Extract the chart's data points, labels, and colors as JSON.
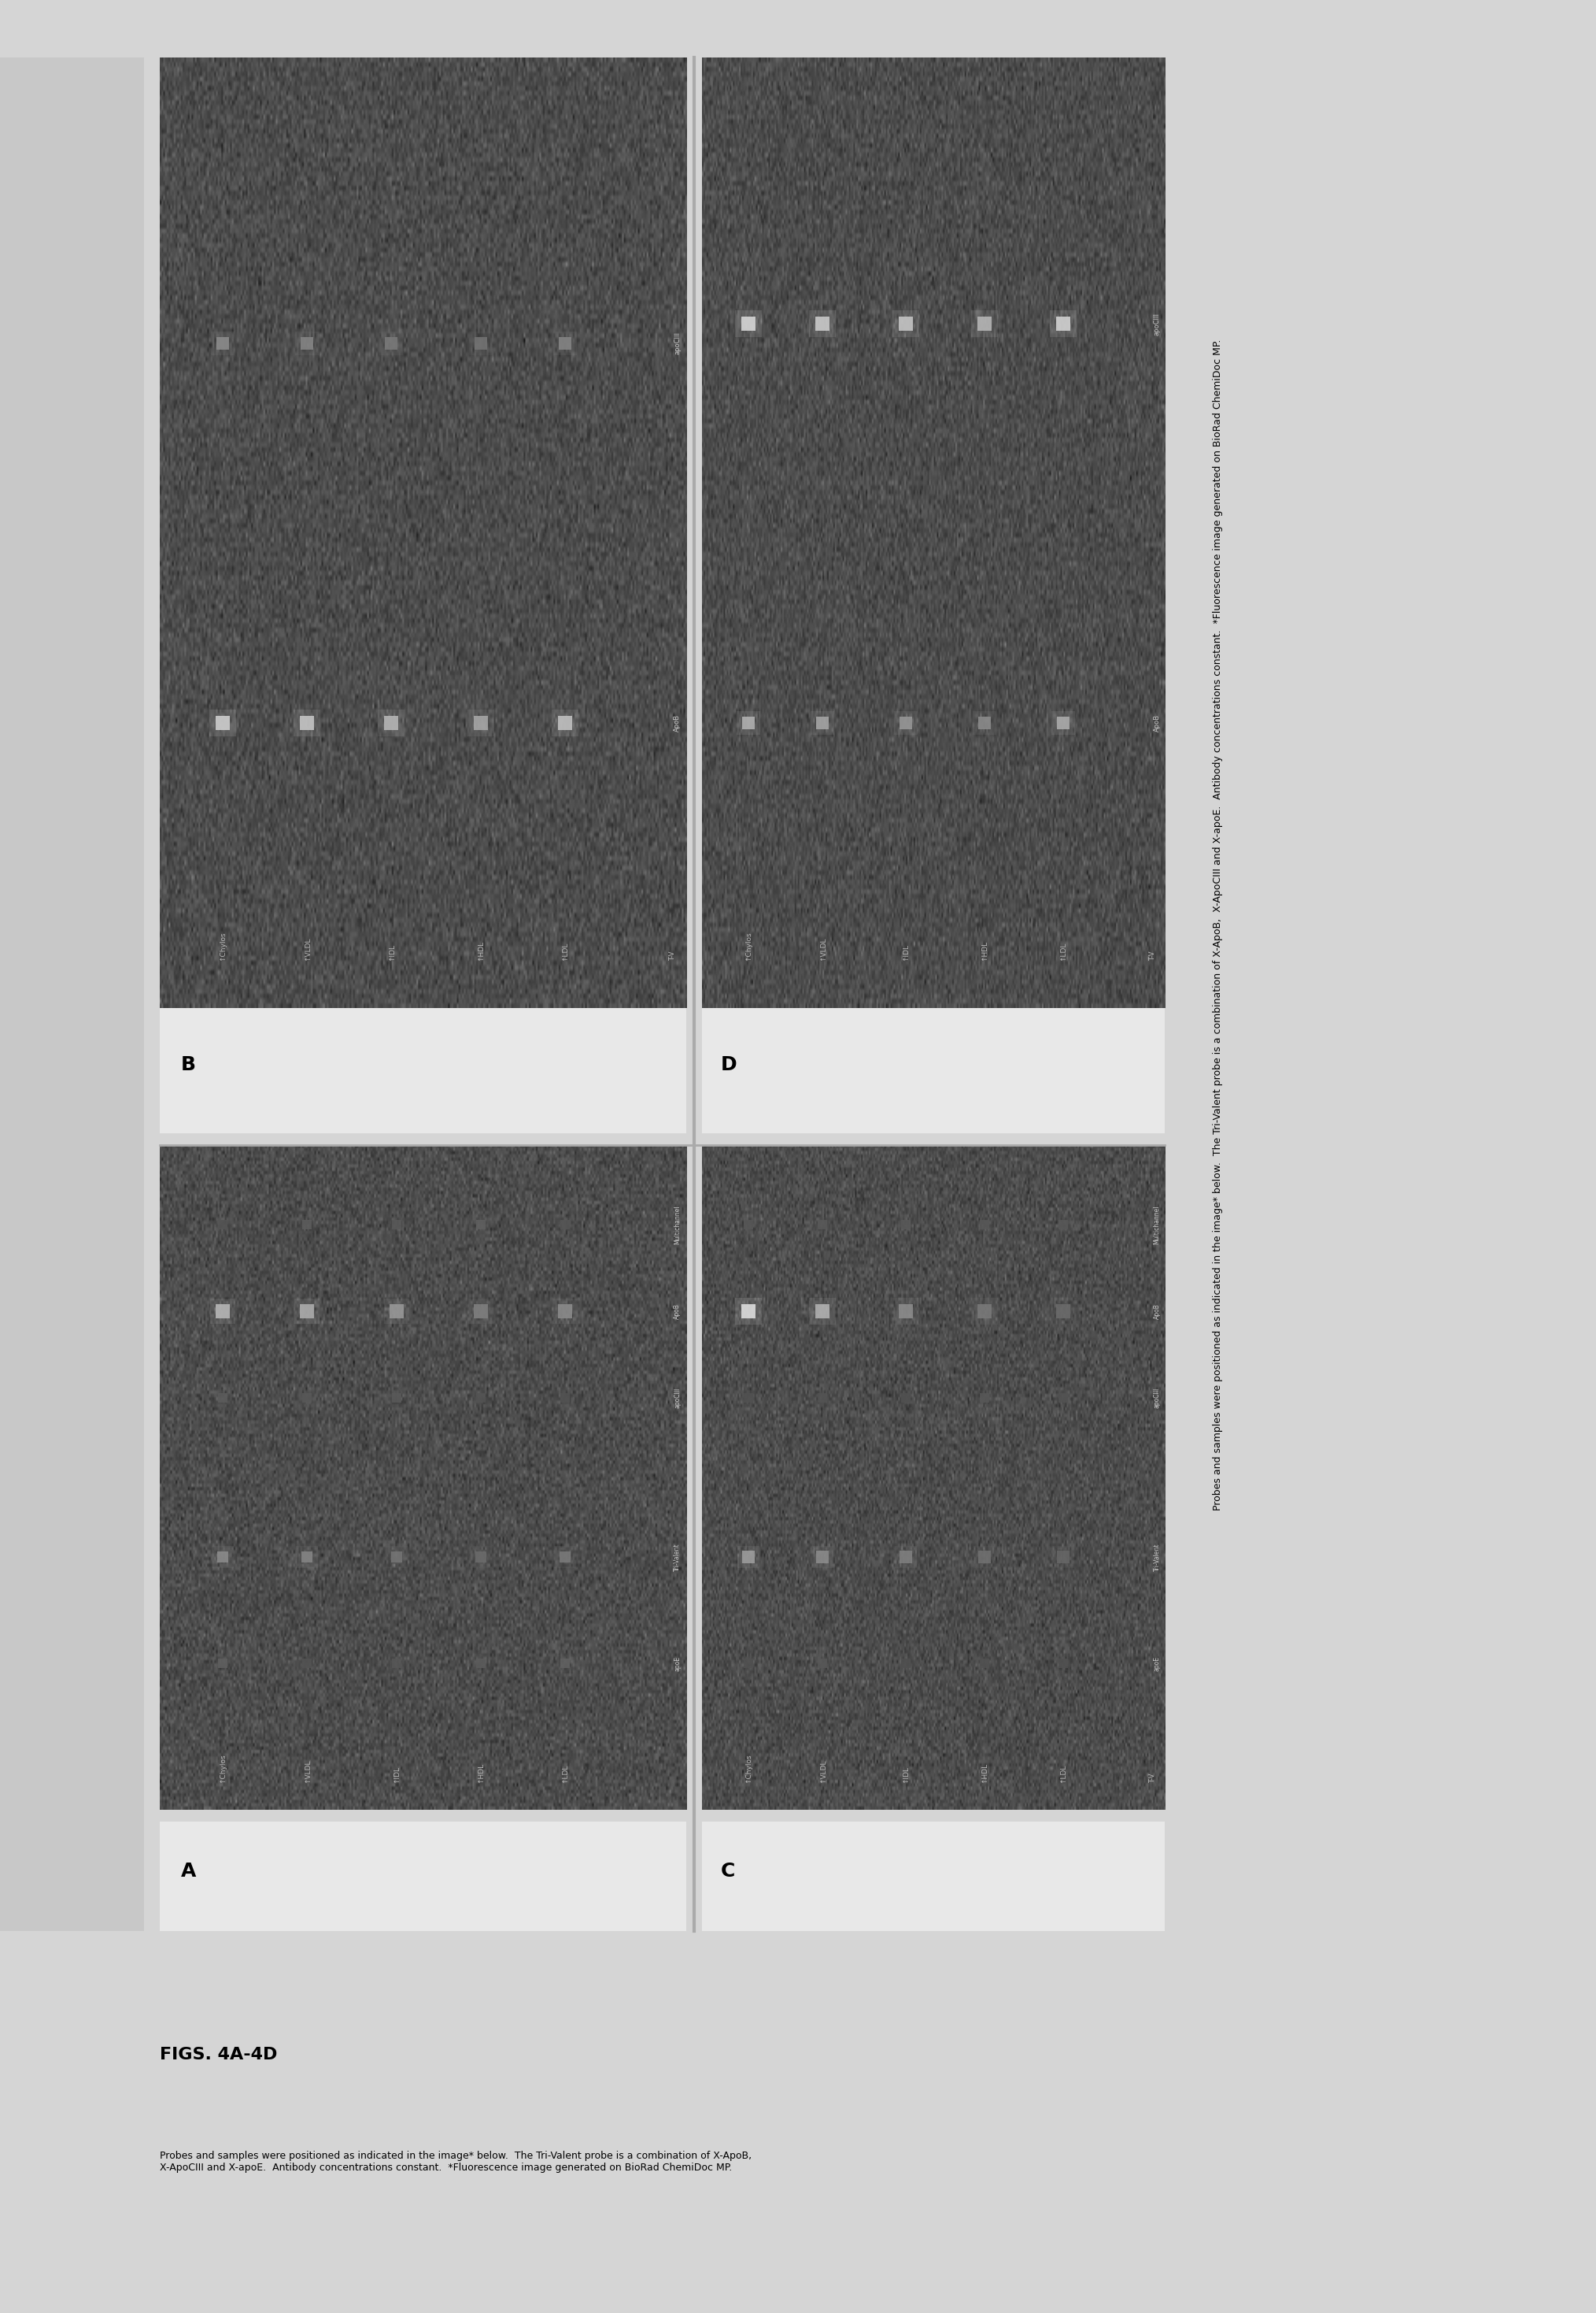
{
  "page_bg": "#d5d5d5",
  "panel_bg": "#2d2d2d",
  "gel_noise_mean": 0.3,
  "gel_noise_std": 0.045,
  "sample_labels": [
    "↑Chylos",
    "↑VLDL",
    "↑IDL",
    "↑HDL",
    "↑LDL"
  ],
  "panel_A_right_labels": [
    "Multichannel",
    "ApoB",
    "apoCIII",
    "Tri-Valent",
    "apoE"
  ],
  "panel_B_right_labels": [
    "apoCIII",
    "ApoB",
    "T-V"
  ],
  "panel_C_right_labels": [
    "Multichannel",
    "ApoB",
    "apoCIII",
    "Tri-Valent",
    "apoE"
  ],
  "panel_D_right_labels": [
    "apoCIII",
    "ApoB",
    "T-V"
  ],
  "caption_title": "FIGS. 4A-4D",
  "caption_line1": "Probes and samples were positioned as indicated in the image* below.  The Tri-Valent probe is a combination of X-ApoB,",
  "caption_line2": "X-ApoCIII and X-apoE.  Antibody concentrations constant.  *Fluorescence image generated on BioRad ChemiDoc MP.",
  "right_caption_line1": "Probes and samples were positioned as indicated in the image* below.  The Tri-Valent probe is a combination of X-ApoB,",
  "right_caption_line2": "X-ApoCIII and X-apoE.  Antibody concentrations constant.  *Fluorescence image generated on BioRad ChemiDoc MP.",
  "separator_color": "#aaaaaa",
  "white_strip_color": "#e8e8e8",
  "letter_fontsize": 18,
  "label_fontsize": 7.5,
  "caption_fontsize": 9,
  "left_border_color": "#b0b0b0",
  "panel_border_color": "#888888"
}
